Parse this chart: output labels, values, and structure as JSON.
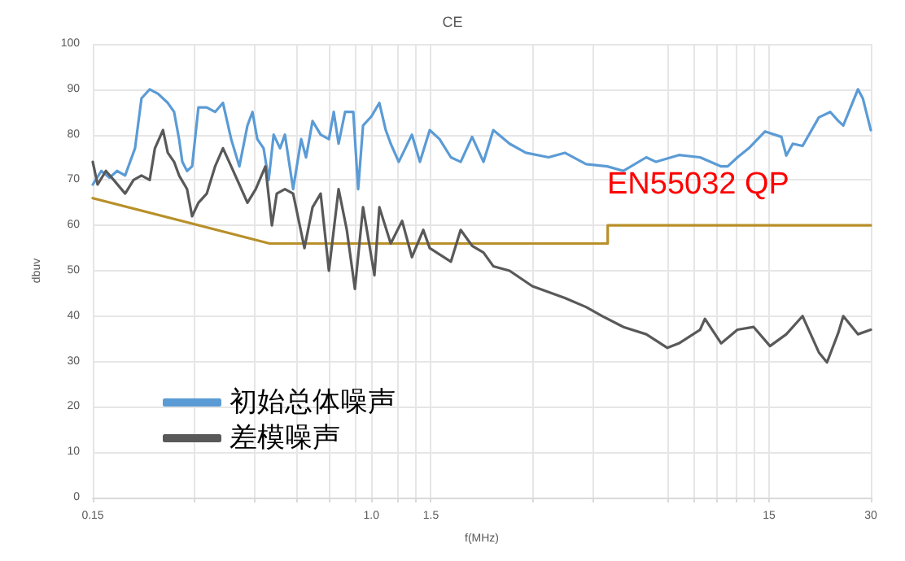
{
  "chart_data": {
    "type": "line",
    "title": "CE",
    "xlabel": "f(MHz)",
    "ylabel": "dbuv",
    "log": "x",
    "xlim": [
      0.15,
      30
    ],
    "xticks": [
      0.15,
      {
        "value": 0.3,
        "label": null
      },
      {
        "value": 0.45,
        "label": null
      },
      {
        "value": 0.6,
        "label": null
      },
      {
        "value": 0.75,
        "label": null
      },
      {
        "value": 0.9,
        "label": null
      },
      {
        "value": 1,
        "label": "1.0"
      },
      {
        "value": 1.2,
        "label": null
      },
      {
        "value": 1.35,
        "label": null
      },
      1.5,
      {
        "value": 3,
        "label": null
      },
      {
        "value": 4.5,
        "label": null
      },
      {
        "value": 7.5,
        "label": null
      },
      {
        "value": 9,
        "label": null
      },
      {
        "value": 10.5,
        "label": null
      },
      {
        "value": 12,
        "label": null
      },
      {
        "value": 13.5,
        "label": null
      },
      15,
      30
    ],
    "ylim": [
      0,
      100
    ],
    "yticks": [
      0,
      10,
      20,
      30,
      40,
      50,
      60,
      70,
      80,
      90,
      100
    ],
    "grid": true,
    "legend": "bottom left",
    "marker": "none",
    "line_style": "solid",
    "series": [
      {
        "name": "初始总体噪声",
        "color": "#5b9bd5",
        "x": [
          0.15,
          0.159,
          0.168,
          0.177,
          0.187,
          0.2,
          0.209,
          0.221,
          0.234,
          0.25,
          0.261,
          0.27,
          0.276,
          0.285,
          0.295,
          0.308,
          0.326,
          0.345,
          0.364,
          0.385,
          0.407,
          0.43,
          0.445,
          0.46,
          0.48,
          0.497,
          0.514,
          0.537,
          0.555,
          0.587,
          0.62,
          0.641,
          0.67,
          0.708,
          0.749,
          0.774,
          0.8,
          0.836,
          0.884,
          0.914,
          0.945,
          1.0,
          1.056,
          1.103,
          1.141,
          1.205,
          1.318,
          1.392,
          1.488,
          1.591,
          1.719,
          1.837,
          1.986,
          2.146,
          2.294,
          2.563,
          2.863,
          3.343,
          3.735,
          4.315,
          4.981,
          5.566,
          6.502,
          6.95,
          8.118,
          9.377,
          10.83,
          11.32,
          12.1,
          13.07,
          14.6,
          16.32,
          16.87,
          17.64,
          18.85,
          21.06,
          22.76,
          24.06,
          24.87,
          27.48,
          28.41,
          30
        ],
        "values": [
          69,
          72,
          70.5,
          72,
          71,
          77,
          88,
          90,
          89,
          87,
          85,
          79,
          74,
          72,
          73,
          86,
          86,
          85,
          87,
          79,
          73,
          82,
          85,
          79,
          77,
          70,
          80,
          77,
          80,
          68,
          79,
          75,
          83,
          80,
          79,
          85,
          78,
          85,
          85,
          68,
          82,
          84,
          87,
          81,
          78,
          74,
          80,
          74,
          81,
          79,
          75,
          74,
          79.5,
          74,
          81,
          78,
          76,
          75,
          76,
          73.5,
          73,
          72,
          75,
          74,
          75.5,
          75,
          73,
          73,
          75,
          77,
          80.7,
          79.5,
          75.4,
          78,
          77.5,
          83.8,
          85,
          83,
          82,
          90,
          88,
          81
        ]
      },
      {
        "name": "差模噪声",
        "color": "#595959",
        "x": [
          0.15,
          0.155,
          0.164,
          0.173,
          0.187,
          0.198,
          0.209,
          0.221,
          0.229,
          0.242,
          0.25,
          0.261,
          0.27,
          0.285,
          0.295,
          0.308,
          0.326,
          0.345,
          0.364,
          0.385,
          0.407,
          0.43,
          0.455,
          0.486,
          0.508,
          0.525,
          0.555,
          0.587,
          0.634,
          0.67,
          0.708,
          0.749,
          0.8,
          0.846,
          0.894,
          0.945,
          1.021,
          1.056,
          1.141,
          1.233,
          1.318,
          1.424,
          1.488,
          1.719,
          1.837,
          1.986,
          2.146,
          2.294,
          2.563,
          2.993,
          3.735,
          4.315,
          4.821,
          5.566,
          6.502,
          7.509,
          8.118,
          9.377,
          9.694,
          10.83,
          12.1,
          13.51,
          15.1,
          16.87,
          18.85,
          21.06,
          22.26,
          24.06,
          24.87,
          27.48,
          30
        ],
        "values": [
          74,
          69,
          72,
          70,
          67,
          70,
          71,
          70,
          77,
          81,
          76,
          74,
          71,
          68,
          62,
          65,
          67,
          73,
          77,
          73,
          69,
          65,
          68,
          73,
          60,
          67,
          68,
          67,
          55,
          64,
          67,
          50,
          68,
          59,
          46,
          64,
          49,
          64,
          56,
          61,
          53,
          59,
          55,
          52,
          59,
          55.5,
          54,
          51,
          50,
          46.6,
          44,
          42,
          40,
          37.6,
          36,
          33,
          34,
          37,
          39.4,
          34,
          37,
          37.6,
          33.4,
          36,
          40,
          32,
          29.8,
          36.4,
          40,
          36,
          37
        ]
      },
      {
        "color": "#b8902a",
        "x": [
          0.15,
          0.5,
          5,
          5,
          30
        ],
        "values": [
          66,
          56,
          56,
          60,
          60
        ]
      }
    ],
    "annotations": [
      "EN55032 QP"
    ]
  }
}
